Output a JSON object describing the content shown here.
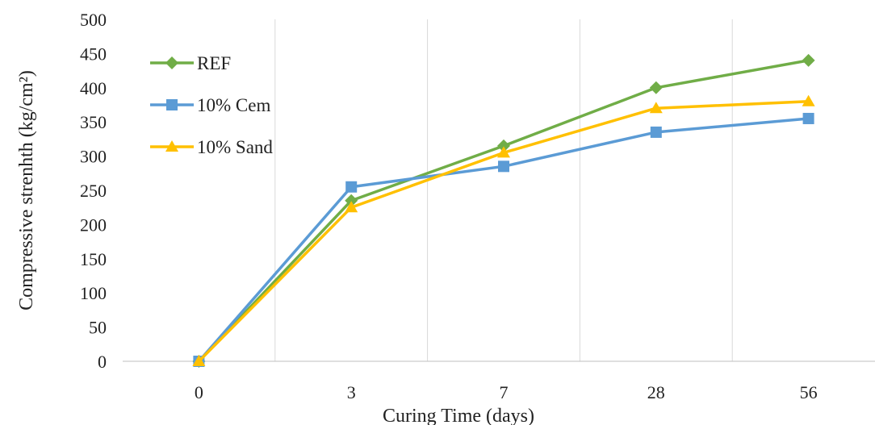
{
  "chart_data": {
    "type": "line",
    "categories": [
      "0",
      "3",
      "7",
      "28",
      "56"
    ],
    "series": [
      {
        "name": "REF",
        "values": [
          0,
          235,
          315,
          400,
          440
        ],
        "color": "#70AD47",
        "marker": "diamond"
      },
      {
        "name": "10% Cem",
        "values": [
          0,
          255,
          285,
          335,
          355
        ],
        "color": "#5B9BD5",
        "marker": "square"
      },
      {
        "name": "10% Sand",
        "values": [
          0,
          225,
          305,
          370,
          380
        ],
        "color": "#FFC000",
        "marker": "triangle"
      }
    ],
    "xlabel": "Curing Time (days)",
    "ylabel": "Compressive strenhth (kg/cm²)",
    "ylim": [
      0,
      500
    ],
    "yticks": [
      "0",
      "50",
      "100",
      "150",
      "200",
      "250",
      "300",
      "350",
      "400",
      "450",
      "500"
    ],
    "grid": "vertical",
    "legend_position": "top-left"
  }
}
